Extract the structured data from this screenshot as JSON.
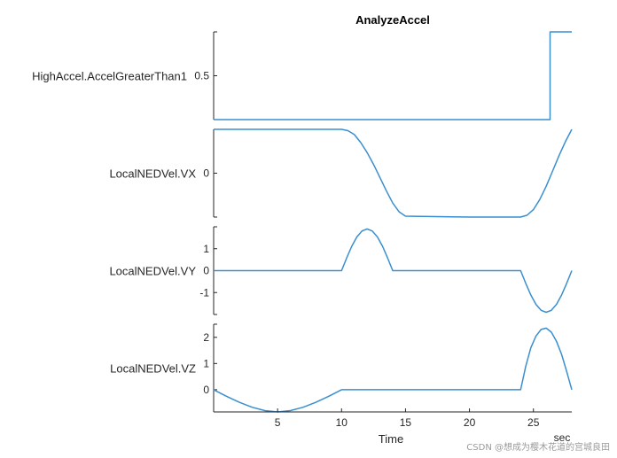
{
  "chart_data": {
    "type": "line",
    "title": "AnalyzeAccel",
    "xlabel": "Time",
    "xunit": "sec",
    "xlim": [
      0,
      28
    ],
    "xticks": [
      5,
      10,
      15,
      20,
      25
    ],
    "line_color": "#3a8fd0",
    "subplots": [
      {
        "ylabel": "HighAccel.AccelGreaterThan1",
        "ylim": [
          0,
          1
        ],
        "yticks": [
          0.5
        ],
        "ytick_labels": [
          "0.5"
        ],
        "step": true,
        "x": [
          0,
          26.3,
          26.3,
          28
        ],
        "y": [
          0,
          0,
          1,
          1
        ]
      },
      {
        "ylabel": "LocalNEDVel.VX",
        "ylim": [
          -1,
          1
        ],
        "yticks": [
          0
        ],
        "ytick_labels": [
          "0"
        ],
        "x": [
          0,
          10,
          10.5,
          11,
          11.5,
          12,
          12.5,
          13,
          13.5,
          14,
          14.5,
          15,
          20,
          24,
          24.5,
          25,
          25.5,
          26,
          26.5,
          27,
          27.5,
          28
        ],
        "y": [
          1,
          1,
          0.97,
          0.88,
          0.7,
          0.47,
          0.2,
          -0.1,
          -0.4,
          -0.68,
          -0.88,
          -0.98,
          -1,
          -1,
          -0.96,
          -0.83,
          -0.6,
          -0.3,
          0.05,
          0.4,
          0.72,
          1
        ]
      },
      {
        "ylabel": "LocalNEDVel.VY",
        "ylim": [
          -2,
          2
        ],
        "yticks": [
          -1,
          0,
          1
        ],
        "ytick_labels": [
          "-1",
          "0",
          "1"
        ],
        "x": [
          0,
          10,
          10.4,
          10.8,
          11.2,
          11.6,
          12,
          12.4,
          12.8,
          13.2,
          13.6,
          14,
          24,
          24.4,
          24.8,
          25.2,
          25.6,
          26,
          26.4,
          26.8,
          27.2,
          27.6,
          28
        ],
        "y": [
          0,
          0,
          0.58,
          1.11,
          1.54,
          1.81,
          1.9,
          1.81,
          1.54,
          1.11,
          0.58,
          0,
          0,
          -0.58,
          -1.11,
          -1.54,
          -1.81,
          -1.9,
          -1.81,
          -1.54,
          -1.11,
          -0.58,
          0
        ]
      },
      {
        "ylabel": "LocalNEDVel.VZ",
        "ylim": [
          -0.85,
          2.5
        ],
        "yticks": [
          0,
          1,
          2
        ],
        "ytick_labels": [
          "0",
          "1",
          "2"
        ],
        "x": [
          0,
          1,
          2,
          3,
          4,
          5,
          6,
          7,
          8,
          9,
          10,
          24,
          24.4,
          24.8,
          25.2,
          25.6,
          26,
          26.4,
          26.8,
          27.2,
          27.6,
          28
        ],
        "y": [
          0,
          -0.25,
          -0.48,
          -0.67,
          -0.8,
          -0.85,
          -0.8,
          -0.67,
          -0.48,
          -0.25,
          0,
          0,
          0.9,
          1.6,
          2.05,
          2.3,
          2.35,
          2.2,
          1.85,
          1.35,
          0.7,
          0
        ]
      }
    ]
  },
  "watermark": "CSDN @想成为樱木花道的宫城良田"
}
